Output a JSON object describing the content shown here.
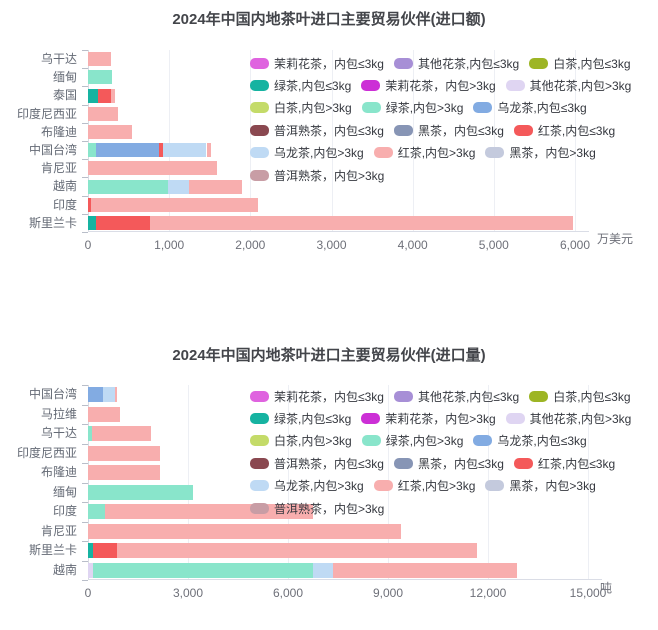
{
  "page": {
    "background": "#ffffff"
  },
  "chart_data": [
    {
      "type": "bar",
      "orientation": "horizontal_stacked",
      "title": "2024年中国内地茶叶进口主要贸易伙伴(进口额)",
      "unit": "万美元",
      "xlim": [
        0,
        6000
      ],
      "xticks": [
        0,
        1000,
        2000,
        3000,
        4000,
        5000,
        6000
      ],
      "xtick_labels": [
        "0",
        "1,000",
        "2,000",
        "3,000",
        "4,000",
        "5,000",
        "6,000"
      ],
      "grid": "vertical",
      "legend_position": "right-overlay",
      "categories": [
        "乌干达",
        "缅甸",
        "泰国",
        "印度尼西亚",
        "布隆迪",
        "中国台湾",
        "肯尼亚",
        "越南",
        "印度",
        "斯里兰卡"
      ],
      "legend": [
        {
          "label": "茉莉花茶，内包≤3kg",
          "color": "#DF63DF"
        },
        {
          "label": "其他花茶,内包≤3kg",
          "color": "#A78FD6"
        },
        {
          "label": "白茶,内包≤3kg",
          "color": "#9DB525"
        },
        {
          "label": "绿茶,内包≤3kg",
          "color": "#16B3A1"
        },
        {
          "label": "茉莉花茶，内包>3kg",
          "color": "#CC2FD6"
        },
        {
          "label": "其他花茶,内包>3kg",
          "color": "#DFD5F2"
        },
        {
          "label": "白茶,内包>3kg",
          "color": "#C4DB69"
        },
        {
          "label": "绿茶,内包>3kg",
          "color": "#89E5CB"
        },
        {
          "label": "乌龙茶,内包≤3kg",
          "color": "#82ABE2"
        },
        {
          "label": "普洱熟茶，内包≤3kg",
          "color": "#8A4850"
        },
        {
          "label": "黑茶，内包≤3kg",
          "color": "#8795B5"
        },
        {
          "label": "红茶,内包≤3kg",
          "color": "#F4595A"
        },
        {
          "label": "乌龙茶,内包>3kg",
          "color": "#BFDAF4"
        },
        {
          "label": "红茶,内包>3kg",
          "color": "#F8AEAE"
        },
        {
          "label": "黑茶，内包>3kg",
          "color": "#C4CADD"
        },
        {
          "label": "普洱熟茶，内包>3kg",
          "color": "#C89DA5"
        }
      ],
      "bars": [
        {
          "category": "乌干达",
          "segments": [
            {
              "series": "红茶,内包>3kg",
              "value": 280
            }
          ]
        },
        {
          "category": "缅甸",
          "segments": [
            {
              "series": "绿茶,内包>3kg",
              "value": 300
            }
          ]
        },
        {
          "category": "泰国",
          "segments": [
            {
              "series": "绿茶,内包≤3kg",
              "value": 125
            },
            {
              "series": "红茶,内包≤3kg",
              "value": 160
            },
            {
              "series": "红茶,内包>3kg",
              "value": 50
            }
          ]
        },
        {
          "category": "印度尼西亚",
          "segments": [
            {
              "series": "红茶,内包>3kg",
              "value": 375
            }
          ]
        },
        {
          "category": "布隆迪",
          "segments": [
            {
              "series": "红茶,内包>3kg",
              "value": 540
            }
          ]
        },
        {
          "category": "中国台湾",
          "segments": [
            {
              "series": "绿茶,内包>3kg",
              "value": 100
            },
            {
              "series": "乌龙茶,内包≤3kg",
              "value": 780
            },
            {
              "series": "红茶,内包≤3kg",
              "value": 50
            },
            {
              "series": "乌龙茶,内包>3kg",
              "value": 530
            },
            {
              "series": "红茶,内包>3kg",
              "value": 50
            }
          ]
        },
        {
          "category": "肯尼亚",
          "segments": [
            {
              "series": "红茶,内包>3kg",
              "value": 1590
            }
          ]
        },
        {
          "category": "越南",
          "segments": [
            {
              "series": "绿茶,内包>3kg",
              "value": 990
            },
            {
              "series": "乌龙茶,内包>3kg",
              "value": 250
            },
            {
              "series": "红茶,内包>3kg",
              "value": 660
            }
          ]
        },
        {
          "category": "印度",
          "segments": [
            {
              "series": "红茶,内包≤3kg",
              "value": 40
            },
            {
              "series": "红茶,内包>3kg",
              "value": 2060
            }
          ]
        },
        {
          "category": "斯里兰卡",
          "segments": [
            {
              "series": "绿茶,内包≤3kg",
              "value": 100
            },
            {
              "series": "红茶,内包≤3kg",
              "value": 670
            },
            {
              "series": "红茶,内包>3kg",
              "value": 5200
            }
          ]
        }
      ]
    },
    {
      "type": "bar",
      "orientation": "horizontal_stacked",
      "title": "2024年中国内地茶叶进口主要贸易伙伴(进口量)",
      "unit": "吨",
      "xlim": [
        0,
        15000
      ],
      "xticks": [
        0,
        3000,
        6000,
        9000,
        12000,
        15000
      ],
      "xtick_labels": [
        "0",
        "3,000",
        "6,000",
        "9,000",
        "12,000",
        "15,000"
      ],
      "grid": "vertical",
      "legend_position": "right-overlay",
      "categories": [
        "中国台湾",
        "马拉维",
        "乌干达",
        "印度尼西亚",
        "布隆迪",
        "缅甸",
        "印度",
        "肯尼亚",
        "斯里兰卡",
        "越南"
      ],
      "legend": [
        {
          "label": "茉莉花茶，内包≤3kg",
          "color": "#DF63DF"
        },
        {
          "label": "其他花茶,内包≤3kg",
          "color": "#A78FD6"
        },
        {
          "label": "白茶,内包≤3kg",
          "color": "#9DB525"
        },
        {
          "label": "绿茶,内包≤3kg",
          "color": "#16B3A1"
        },
        {
          "label": "茉莉花茶，内包>3kg",
          "color": "#CC2FD6"
        },
        {
          "label": "其他花茶,内包>3kg",
          "color": "#DFD5F2"
        },
        {
          "label": "白茶,内包>3kg",
          "color": "#C4DB69"
        },
        {
          "label": "绿茶,内包>3kg",
          "color": "#89E5CB"
        },
        {
          "label": "乌龙茶,内包≤3kg",
          "color": "#82ABE2"
        },
        {
          "label": "普洱熟茶，内包≤3kg",
          "color": "#8A4850"
        },
        {
          "label": "黑茶，内包≤3kg",
          "color": "#8795B5"
        },
        {
          "label": "红茶,内包≤3kg",
          "color": "#F4595A"
        },
        {
          "label": "乌龙茶,内包>3kg",
          "color": "#BFDAF4"
        },
        {
          "label": "红茶,内包>3kg",
          "color": "#F8AEAE"
        },
        {
          "label": "黑茶，内包>3kg",
          "color": "#C4CADD"
        },
        {
          "label": "普洱熟茶，内包>3kg",
          "color": "#C89DA5"
        }
      ],
      "bars": [
        {
          "category": "中国台湾",
          "segments": [
            {
              "series": "乌龙茶,内包≤3kg",
              "value": 450
            },
            {
              "series": "乌龙茶,内包>3kg",
              "value": 360
            },
            {
              "series": "红茶,内包>3kg",
              "value": 60
            }
          ]
        },
        {
          "category": "马拉维",
          "segments": [
            {
              "series": "红茶,内包>3kg",
              "value": 950
            }
          ]
        },
        {
          "category": "乌干达",
          "segments": [
            {
              "series": "绿茶,内包>3kg",
              "value": 120
            },
            {
              "series": "红茶,内包>3kg",
              "value": 1780
            }
          ]
        },
        {
          "category": "印度尼西亚",
          "segments": [
            {
              "series": "红茶,内包>3kg",
              "value": 2150
            }
          ]
        },
        {
          "category": "布隆迪",
          "segments": [
            {
              "series": "红茶,内包>3kg",
              "value": 2150
            }
          ]
        },
        {
          "category": "缅甸",
          "segments": [
            {
              "series": "绿茶,内包>3kg",
              "value": 3150
            }
          ]
        },
        {
          "category": "印度",
          "segments": [
            {
              "series": "绿茶,内包>3kg",
              "value": 500
            },
            {
              "series": "红茶,内包>3kg",
              "value": 6250
            }
          ]
        },
        {
          "category": "肯尼亚",
          "segments": [
            {
              "series": "红茶,内包>3kg",
              "value": 9400
            }
          ]
        },
        {
          "category": "斯里兰卡",
          "segments": [
            {
              "series": "绿茶,内包≤3kg",
              "value": 150
            },
            {
              "series": "红茶,内包≤3kg",
              "value": 720
            },
            {
              "series": "红茶,内包>3kg",
              "value": 10800
            }
          ]
        },
        {
          "category": "越南",
          "segments": [
            {
              "series": "其他花茶,内包>3kg",
              "value": 150
            },
            {
              "series": "绿茶,内包>3kg",
              "value": 6600
            },
            {
              "series": "乌龙茶,内包>3kg",
              "value": 600
            },
            {
              "series": "红茶,内包>3kg",
              "value": 5520
            }
          ]
        }
      ]
    }
  ]
}
